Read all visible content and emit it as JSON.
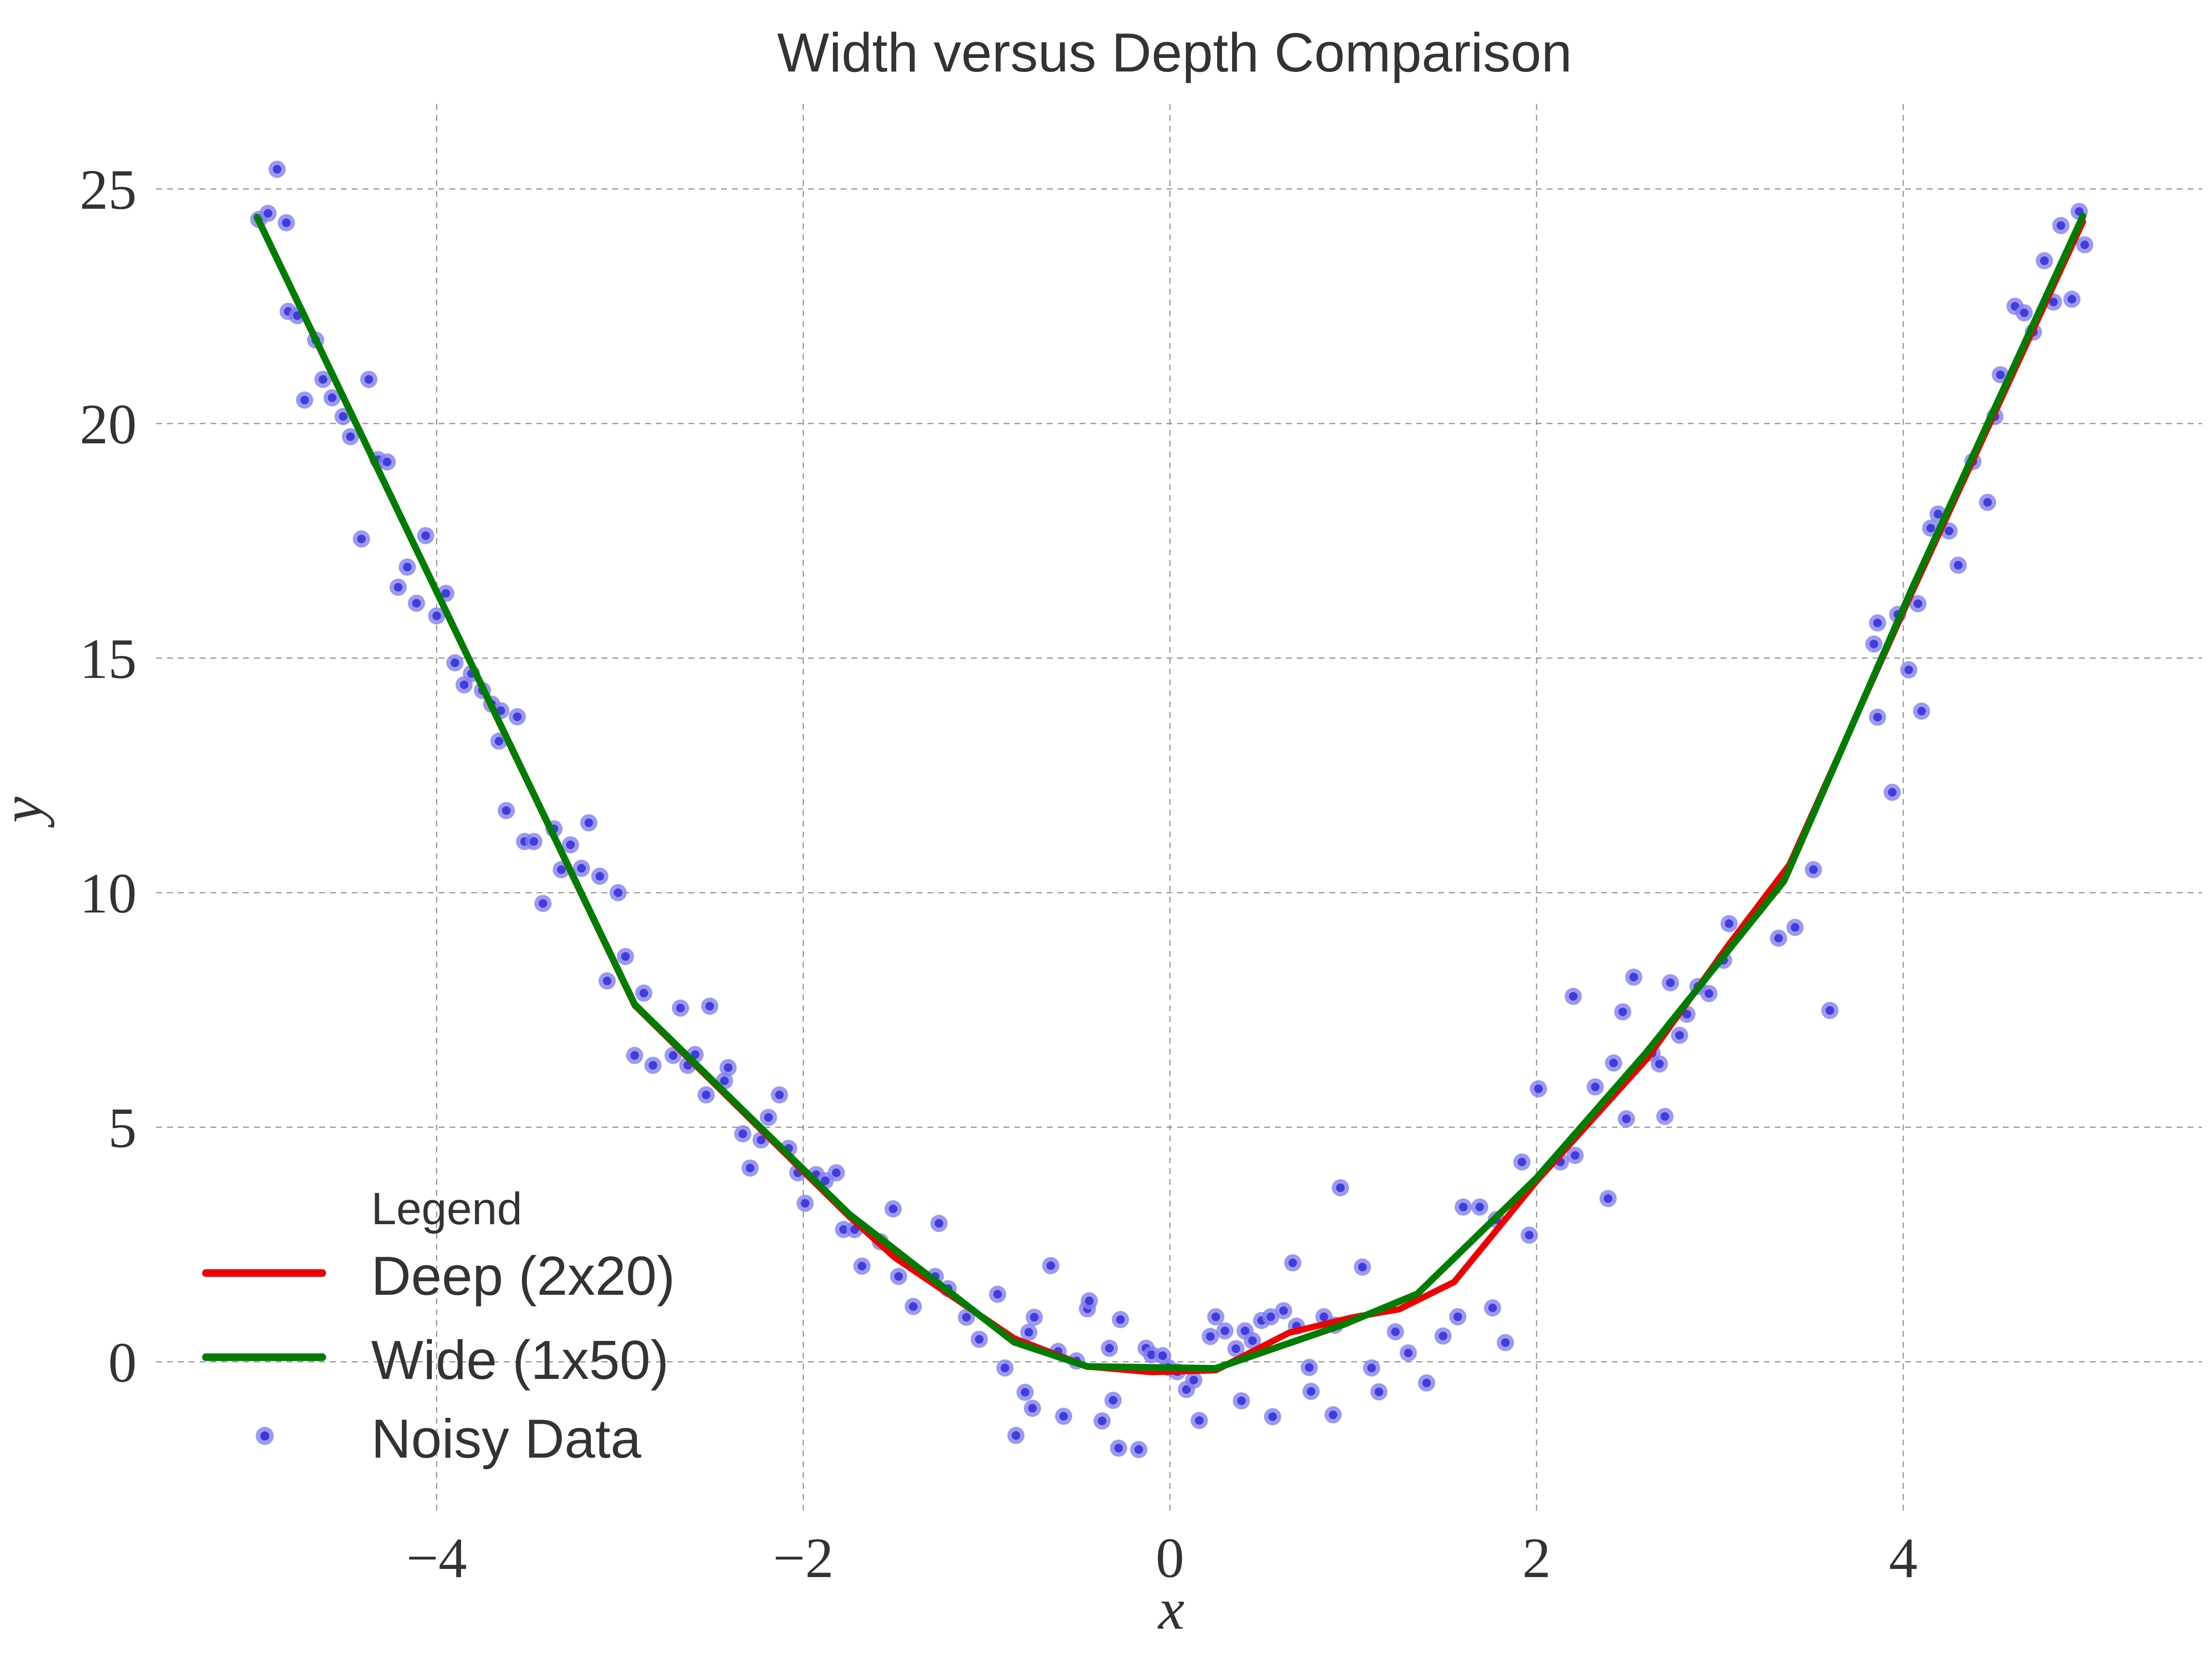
{
  "title": "Width versus Depth Comparison",
  "colors": {
    "background": "#ffffff",
    "text": "#333333",
    "grid": "#8c8c8c",
    "deep_line": "#ee0000",
    "wide_line": "#007d00",
    "scatter_halo": "#8280ef",
    "scatter_core": "#3a38da"
  },
  "legend": {
    "header": "Legend",
    "items": [
      {
        "label": "Deep (2x20)",
        "type": "line",
        "color": "#ee0000"
      },
      {
        "label": "Wide (1x50)",
        "type": "line",
        "color": "#007d00"
      },
      {
        "label": "Noisy Data",
        "type": "marker",
        "color": "#3a38da"
      }
    ]
  },
  "chart_data": {
    "type": "scatter",
    "title": "Width versus Depth Comparison",
    "xlabel": "x",
    "ylabel": "y",
    "x_range": [
      -5.53,
      5.63
    ],
    "y_range": [
      -3.18,
      26.81
    ],
    "x_ticks": [
      -4,
      -2,
      0,
      2,
      4
    ],
    "y_ticks": [
      0,
      5,
      10,
      15,
      20,
      25
    ],
    "grid": "dashed",
    "legend_position": "lower-left",
    "series": [
      {
        "name": "Deep (2x20)",
        "type": "line",
        "color": "#ee0000",
        "points": [
          [
            -4.98,
            24.4
          ],
          [
            -2.92,
            7.6
          ],
          [
            -1.75,
            3.1
          ],
          [
            -1.5,
            2.22
          ],
          [
            -0.85,
            0.5
          ],
          [
            -0.45,
            -0.1
          ],
          [
            -0.1,
            -0.22
          ],
          [
            0.25,
            -0.18
          ],
          [
            0.65,
            0.62
          ],
          [
            1.0,
            0.95
          ],
          [
            1.25,
            1.12
          ],
          [
            1.55,
            1.7
          ],
          [
            2.0,
            3.85
          ],
          [
            2.6,
            6.45
          ],
          [
            3.05,
            8.9
          ],
          [
            3.38,
            10.6
          ],
          [
            4.05,
            16.42
          ],
          [
            4.98,
            24.3
          ]
        ]
      },
      {
        "name": "Wide (1x50)",
        "type": "line",
        "color": "#007d00",
        "points": [
          [
            -4.98,
            24.4
          ],
          [
            -2.92,
            7.62
          ],
          [
            -1.75,
            3.15
          ],
          [
            -0.85,
            0.42
          ],
          [
            -0.45,
            -0.1
          ],
          [
            0.25,
            -0.14
          ],
          [
            0.95,
            0.8
          ],
          [
            1.35,
            1.45
          ],
          [
            2.0,
            3.92
          ],
          [
            2.6,
            6.6
          ],
          [
            3.35,
            10.25
          ],
          [
            4.05,
            16.5
          ],
          [
            4.98,
            24.42
          ]
        ]
      },
      {
        "name": "Noisy Data",
        "type": "scatter",
        "halo_color": "#8280ef",
        "core_color": "#3a38da",
        "points": [
          [
            -4.97,
            24.35
          ],
          [
            -4.92,
            24.48
          ],
          [
            -4.87,
            25.42
          ],
          [
            -4.82,
            24.28
          ],
          [
            -4.81,
            22.39
          ],
          [
            -4.76,
            22.3
          ],
          [
            -4.66,
            21.78
          ],
          [
            -4.72,
            20.5
          ],
          [
            -4.62,
            20.94
          ],
          [
            -4.57,
            20.55
          ],
          [
            -4.51,
            20.15
          ],
          [
            -4.47,
            19.72
          ],
          [
            -4.37,
            20.94
          ],
          [
            -4.32,
            19.23
          ],
          [
            -4.27,
            19.18
          ],
          [
            -4.41,
            17.54
          ],
          [
            -4.21,
            16.51
          ],
          [
            -4.16,
            16.94
          ],
          [
            -4.11,
            16.17
          ],
          [
            -4.06,
            17.61
          ],
          [
            -4.0,
            15.9
          ],
          [
            -3.95,
            16.38
          ],
          [
            -3.9,
            14.9
          ],
          [
            -3.85,
            14.43
          ],
          [
            -3.81,
            14.67
          ],
          [
            -3.75,
            14.31
          ],
          [
            -3.7,
            14.02
          ],
          [
            -3.65,
            13.88
          ],
          [
            -3.66,
            13.23
          ],
          [
            -3.56,
            13.75
          ],
          [
            -3.62,
            11.75
          ],
          [
            -3.52,
            11.09
          ],
          [
            -3.47,
            11.09
          ],
          [
            -3.42,
            9.77
          ],
          [
            -3.36,
            11.36
          ],
          [
            -3.32,
            10.49
          ],
          [
            -3.27,
            11.02
          ],
          [
            -3.21,
            10.52
          ],
          [
            -3.17,
            11.49
          ],
          [
            -3.11,
            10.35
          ],
          [
            -3.07,
            8.12
          ],
          [
            -3.01,
            10.0
          ],
          [
            -2.97,
            8.64
          ],
          [
            -2.92,
            6.53
          ],
          [
            -2.87,
            7.86
          ],
          [
            -2.82,
            6.32
          ],
          [
            -2.71,
            6.53
          ],
          [
            -2.67,
            7.54
          ],
          [
            -2.63,
            6.32
          ],
          [
            -2.59,
            6.55
          ],
          [
            -2.53,
            5.69
          ],
          [
            -2.51,
            7.58
          ],
          [
            -2.43,
            5.99
          ],
          [
            -2.41,
            6.27
          ],
          [
            -2.33,
            4.86
          ],
          [
            -2.29,
            4.13
          ],
          [
            -2.23,
            4.73
          ],
          [
            -2.19,
            5.21
          ],
          [
            -2.13,
            5.69
          ],
          [
            -2.08,
            4.55
          ],
          [
            -2.03,
            4.03
          ],
          [
            -1.99,
            3.38
          ],
          [
            -1.93,
            3.99
          ],
          [
            -1.88,
            3.86
          ],
          [
            -1.82,
            4.03
          ],
          [
            -1.78,
            2.82
          ],
          [
            -1.72,
            2.82
          ],
          [
            -1.68,
            2.04
          ],
          [
            -1.58,
            2.56
          ],
          [
            -1.51,
            3.26
          ],
          [
            -1.48,
            1.82
          ],
          [
            -1.4,
            1.18
          ],
          [
            -1.28,
            1.82
          ],
          [
            -1.26,
            2.95
          ],
          [
            -1.21,
            1.56
          ],
          [
            -1.11,
            0.95
          ],
          [
            -1.04,
            0.48
          ],
          [
            -0.94,
            1.44
          ],
          [
            -0.9,
            -0.13
          ],
          [
            -0.84,
            -1.57
          ],
          [
            -0.79,
            -0.65
          ],
          [
            -0.77,
            0.63
          ],
          [
            -0.75,
            -0.99
          ],
          [
            -0.74,
            0.95
          ],
          [
            -0.65,
            2.05
          ],
          [
            -0.61,
            0.22
          ],
          [
            -0.58,
            -1.16
          ],
          [
            -0.51,
            0.02
          ],
          [
            -0.45,
            1.13
          ],
          [
            -0.44,
            1.3
          ],
          [
            -0.37,
            -1.26
          ],
          [
            -0.33,
            0.29
          ],
          [
            -0.31,
            -0.82
          ],
          [
            -0.28,
            -1.84
          ],
          [
            -0.27,
            0.9
          ],
          [
            -0.17,
            -1.87
          ],
          [
            -0.13,
            0.29
          ],
          [
            -0.1,
            0.15
          ],
          [
            -0.04,
            0.13
          ],
          [
            -0.01,
            -0.12
          ],
          [
            0.04,
            -0.21
          ],
          [
            0.09,
            -0.59
          ],
          [
            0.13,
            -0.39
          ],
          [
            0.16,
            -1.25
          ],
          [
            0.22,
            0.54
          ],
          [
            0.25,
            0.96
          ],
          [
            0.3,
            0.66
          ],
          [
            0.36,
            0.28
          ],
          [
            0.39,
            -0.83
          ],
          [
            0.41,
            0.66
          ],
          [
            0.45,
            0.45
          ],
          [
            0.5,
            0.88
          ],
          [
            0.55,
            0.96
          ],
          [
            0.56,
            -1.17
          ],
          [
            0.62,
            1.09
          ],
          [
            0.67,
            2.11
          ],
          [
            0.69,
            0.76
          ],
          [
            0.76,
            -0.12
          ],
          [
            0.77,
            -0.63
          ],
          [
            0.84,
            0.96
          ],
          [
            0.89,
            -1.13
          ],
          [
            0.9,
            0.78
          ],
          [
            0.93,
            3.71
          ],
          [
            1.05,
            2.02
          ],
          [
            1.1,
            -0.13
          ],
          [
            1.14,
            -0.64
          ],
          [
            1.23,
            0.64
          ],
          [
            1.3,
            0.19
          ],
          [
            1.4,
            -0.45
          ],
          [
            1.49,
            0.55
          ],
          [
            1.57,
            0.96
          ],
          [
            1.6,
            3.3
          ],
          [
            1.69,
            3.3
          ],
          [
            1.76,
            1.15
          ],
          [
            1.78,
            3.03
          ],
          [
            1.83,
            0.41
          ],
          [
            1.92,
            4.26
          ],
          [
            1.96,
            2.7
          ],
          [
            2.01,
            5.82
          ],
          [
            2.13,
            4.26
          ],
          [
            2.2,
            7.79
          ],
          [
            2.21,
            4.4
          ],
          [
            2.32,
            5.86
          ],
          [
            2.39,
            3.48
          ],
          [
            2.42,
            6.37
          ],
          [
            2.47,
            7.46
          ],
          [
            2.49,
            5.18
          ],
          [
            2.53,
            8.2
          ],
          [
            2.63,
            6.58
          ],
          [
            2.67,
            6.35
          ],
          [
            2.7,
            5.23
          ],
          [
            2.73,
            8.08
          ],
          [
            2.78,
            6.96
          ],
          [
            2.82,
            7.41
          ],
          [
            2.88,
            8.0
          ],
          [
            2.94,
            7.85
          ],
          [
            3.02,
            8.56
          ],
          [
            3.05,
            9.34
          ],
          [
            3.32,
            9.03
          ],
          [
            3.41,
            9.26
          ],
          [
            3.51,
            10.49
          ],
          [
            3.6,
            7.49
          ],
          [
            3.86,
            13.74
          ],
          [
            3.94,
            12.14
          ],
          [
            3.84,
            15.3
          ],
          [
            3.86,
            15.75
          ],
          [
            3.97,
            15.93
          ],
          [
            4.08,
            16.16
          ],
          [
            4.03,
            14.75
          ],
          [
            4.1,
            13.87
          ],
          [
            4.15,
            17.77
          ],
          [
            4.19,
            18.07
          ],
          [
            4.25,
            17.71
          ],
          [
            4.3,
            16.98
          ],
          [
            4.38,
            19.19
          ],
          [
            4.46,
            18.32
          ],
          [
            4.5,
            20.15
          ],
          [
            4.53,
            21.04
          ],
          [
            4.61,
            22.5
          ],
          [
            4.66,
            22.36
          ],
          [
            4.71,
            21.95
          ],
          [
            4.77,
            23.47
          ],
          [
            4.82,
            22.59
          ],
          [
            4.86,
            24.22
          ],
          [
            4.92,
            22.65
          ],
          [
            4.96,
            24.52
          ],
          [
            4.99,
            23.81
          ]
        ]
      }
    ]
  }
}
